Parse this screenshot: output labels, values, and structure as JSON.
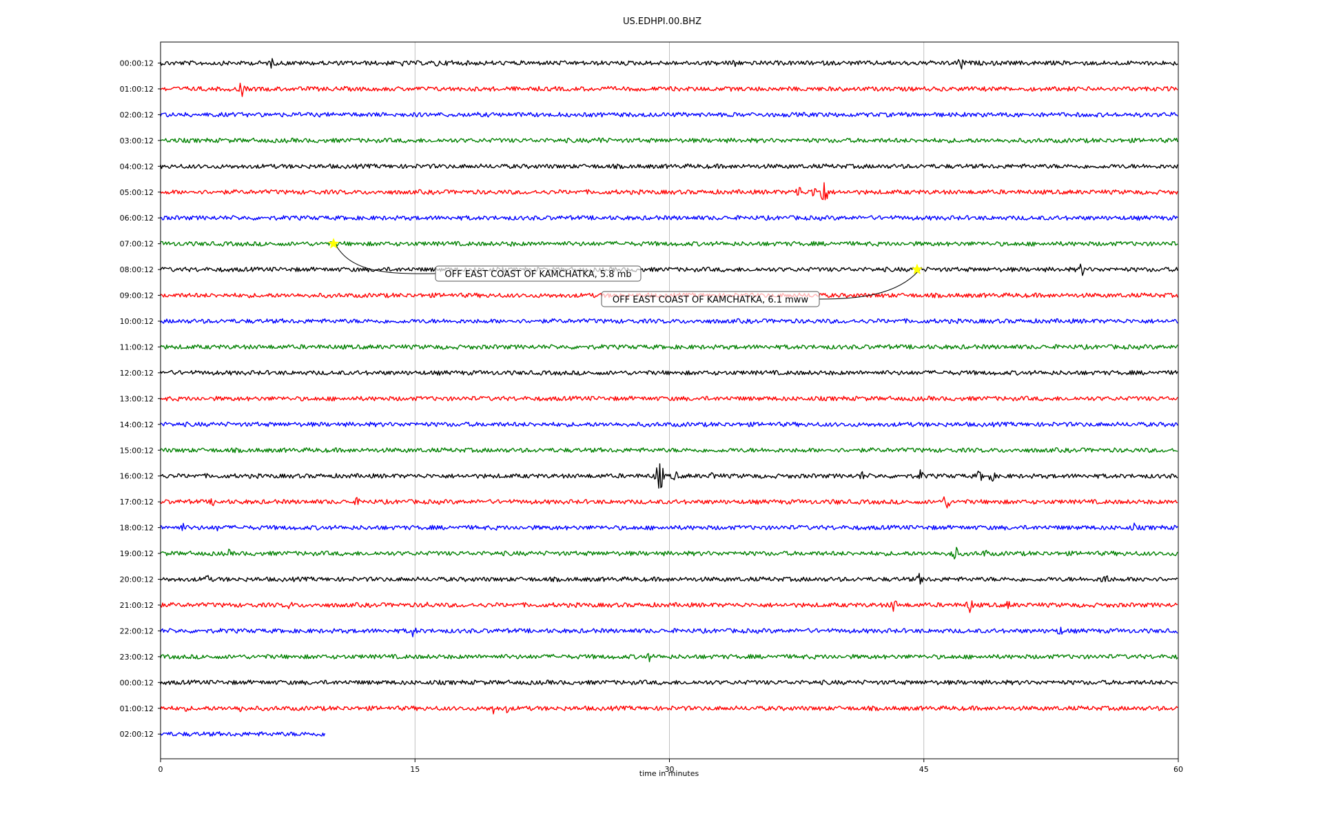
{
  "chart_data": {
    "type": "line",
    "title": "US.EDHPI.00.BHZ",
    "xlabel": "time in minutes",
    "ylabel": "",
    "xlim": [
      0,
      60
    ],
    "x_ticks": [
      "0",
      "15",
      "30",
      "45",
      "60"
    ],
    "x_tick_values": [
      0,
      15,
      30,
      45,
      60
    ],
    "grid": "vertical lines at x ticks",
    "colors": [
      "#000000",
      "#ff0000",
      "#0000ff",
      "#008000"
    ],
    "series": [
      {
        "label": "00:00:12",
        "end_minute": 60,
        "bursts": [
          {
            "t": 6.5,
            "amp": 9
          },
          {
            "t": 14.2,
            "amp": 6
          },
          {
            "t": 16.3,
            "amp": 7
          },
          {
            "t": 17.2,
            "amp": 7
          },
          {
            "t": 33.8,
            "amp": 11
          },
          {
            "t": 47.2,
            "amp": 12
          }
        ]
      },
      {
        "label": "01:00:12",
        "end_minute": 60,
        "bursts": [
          {
            "t": 4.8,
            "amp": 12
          }
        ]
      },
      {
        "label": "02:00:12",
        "end_minute": 60,
        "bursts": []
      },
      {
        "label": "03:00:12",
        "end_minute": 60,
        "bursts": [
          {
            "t": 25.9,
            "amp": 8
          }
        ]
      },
      {
        "label": "04:00:12",
        "end_minute": 60,
        "bursts": []
      },
      {
        "label": "05:00:12",
        "end_minute": 60,
        "bursts": [
          {
            "t": 37.6,
            "amp": 12
          },
          {
            "t": 38.5,
            "amp": 10
          },
          {
            "t": 39.1,
            "amp": 26
          }
        ]
      },
      {
        "label": "06:00:12",
        "end_minute": 60,
        "bursts": []
      },
      {
        "label": "07:00:12",
        "end_minute": 60,
        "bursts": [
          {
            "t": 20.6,
            "amp": 5
          }
        ]
      },
      {
        "label": "08:00:12",
        "end_minute": 60,
        "bursts": [
          {
            "t": 54.3,
            "amp": 11
          }
        ]
      },
      {
        "label": "09:00:12",
        "end_minute": 60,
        "bursts": []
      },
      {
        "label": "10:00:12",
        "end_minute": 60,
        "bursts": []
      },
      {
        "label": "11:00:12",
        "end_minute": 60,
        "bursts": []
      },
      {
        "label": "12:00:12",
        "end_minute": 60,
        "bursts": []
      },
      {
        "label": "13:00:12",
        "end_minute": 60,
        "bursts": []
      },
      {
        "label": "14:00:12",
        "end_minute": 60,
        "bursts": []
      },
      {
        "label": "15:00:12",
        "end_minute": 60,
        "bursts": []
      },
      {
        "label": "16:00:12",
        "end_minute": 60,
        "bursts": [
          {
            "t": 29.4,
            "amp": 30
          },
          {
            "t": 30.3,
            "amp": 10
          },
          {
            "t": 32.6,
            "amp": 8
          },
          {
            "t": 41.3,
            "amp": 9
          },
          {
            "t": 44.8,
            "amp": 10
          },
          {
            "t": 48.3,
            "amp": 10
          },
          {
            "t": 49.0,
            "amp": 9
          }
        ]
      },
      {
        "label": "17:00:12",
        "end_minute": 60,
        "bursts": [
          {
            "t": 3.1,
            "amp": 7
          },
          {
            "t": 11.6,
            "amp": 7
          },
          {
            "t": 39.8,
            "amp": 6
          },
          {
            "t": 46.3,
            "amp": 14
          },
          {
            "t": 49.3,
            "amp": 6
          }
        ]
      },
      {
        "label": "18:00:12",
        "end_minute": 60,
        "bursts": [
          {
            "t": 1.3,
            "amp": 8
          },
          {
            "t": 3.3,
            "amp": 6
          },
          {
            "t": 57.4,
            "amp": 7
          }
        ]
      },
      {
        "label": "19:00:12",
        "end_minute": 60,
        "bursts": [
          {
            "t": 4.0,
            "amp": 7
          },
          {
            "t": 46.8,
            "amp": 14
          },
          {
            "t": 48.6,
            "amp": 7
          }
        ]
      },
      {
        "label": "20:00:12",
        "end_minute": 60,
        "bursts": [
          {
            "t": 2.7,
            "amp": 9
          },
          {
            "t": 44.8,
            "amp": 11
          },
          {
            "t": 55.7,
            "amp": 14
          },
          {
            "t": 58.0,
            "amp": 8
          }
        ]
      },
      {
        "label": "21:00:12",
        "end_minute": 60,
        "bursts": [
          {
            "t": 7.6,
            "amp": 7
          },
          {
            "t": 15.8,
            "amp": 7
          },
          {
            "t": 43.2,
            "amp": 12
          },
          {
            "t": 47.7,
            "amp": 12
          },
          {
            "t": 50.0,
            "amp": 8
          }
        ]
      },
      {
        "label": "22:00:12",
        "end_minute": 60,
        "bursts": [
          {
            "t": 14.9,
            "amp": 10
          },
          {
            "t": 53.0,
            "amp": 8
          }
        ]
      },
      {
        "label": "23:00:12",
        "end_minute": 60,
        "bursts": [
          {
            "t": 28.8,
            "amp": 8
          },
          {
            "t": 39.5,
            "amp": 5
          }
        ]
      },
      {
        "label": "00:00:12",
        "end_minute": 60,
        "bursts": []
      },
      {
        "label": "01:00:12",
        "end_minute": 60,
        "bursts": [
          {
            "t": 1.4,
            "amp": 7
          },
          {
            "t": 4.7,
            "amp": 9
          },
          {
            "t": 19.6,
            "amp": 9
          },
          {
            "t": 20.4,
            "amp": 7
          }
        ]
      },
      {
        "label": "02:00:12",
        "end_minute": 9.7,
        "bursts": []
      }
    ],
    "annotations": [
      {
        "text": "OFF EAST COAST OF KAMCHATKA, 5.8 mb",
        "minute": 10.2,
        "trace_index": 7
      },
      {
        "text": "OFF EAST COAST OF KAMCHATKA, 6.1 mww",
        "minute": 44.6,
        "trace_index": 8
      }
    ],
    "event_marker": {
      "shape": "star",
      "color": "#ffff00"
    }
  }
}
